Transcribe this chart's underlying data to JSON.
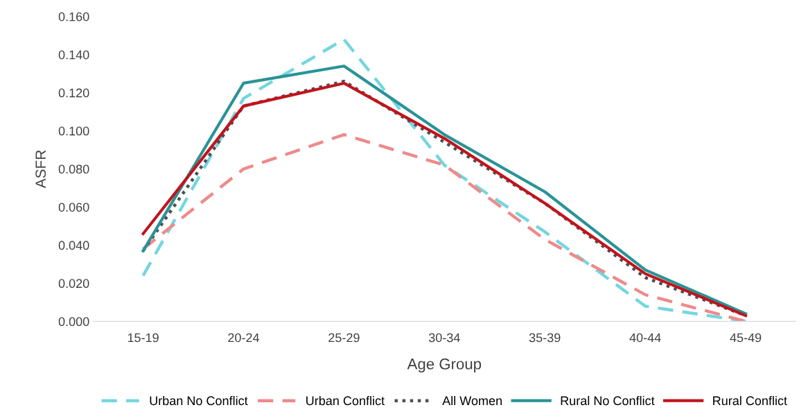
{
  "chart_data": {
    "type": "line",
    "xlabel": "Age Group",
    "ylabel": "ASFR",
    "categories": [
      "15-19",
      "20-24",
      "25-29",
      "30-34",
      "35-39",
      "40-44",
      "45-49"
    ],
    "ylim": [
      0,
      0.16
    ],
    "yticks": [
      {
        "value": 0,
        "label": "0.000"
      },
      {
        "value": 0.02,
        "label": "0.020"
      },
      {
        "value": 0.04,
        "label": "0.040"
      },
      {
        "value": 0.06,
        "label": "0.060"
      },
      {
        "value": 0.08,
        "label": "0.080"
      },
      {
        "value": 0.1,
        "label": "0.100"
      },
      {
        "value": 0.12,
        "label": "0.120"
      },
      {
        "value": 0.14,
        "label": "0.140"
      },
      {
        "value": 0.16,
        "label": "0.160"
      }
    ],
    "grid": false,
    "legend": "bottom",
    "marker": "none",
    "series": [
      {
        "name": "Urban No Conflict",
        "color": "#74d6df",
        "line_style": "dashed",
        "values": [
          0.024,
          0.117,
          0.148,
          0.082,
          0.047,
          0.008,
          0.0
        ]
      },
      {
        "name": "Urban Conflict",
        "color": "#ee8a8a",
        "line_style": "dashed",
        "values": [
          0.038,
          0.08,
          0.098,
          0.082,
          0.043,
          0.014,
          0.0
        ]
      },
      {
        "name": "All Women",
        "color": "#4d4d55",
        "line_style": "dotted",
        "values": [
          0.037,
          0.113,
          0.126,
          0.094,
          0.062,
          0.023,
          0.003
        ]
      },
      {
        "name": "Rural No Conflict",
        "color": "#2a9396",
        "line_style": "solid",
        "values": [
          0.037,
          0.125,
          0.134,
          0.098,
          0.068,
          0.027,
          0.004
        ]
      },
      {
        "name": "Rural Conflict",
        "color": "#c0141c",
        "line_style": "solid",
        "values": [
          0.046,
          0.113,
          0.125,
          0.096,
          0.062,
          0.025,
          0.003
        ]
      }
    ]
  }
}
